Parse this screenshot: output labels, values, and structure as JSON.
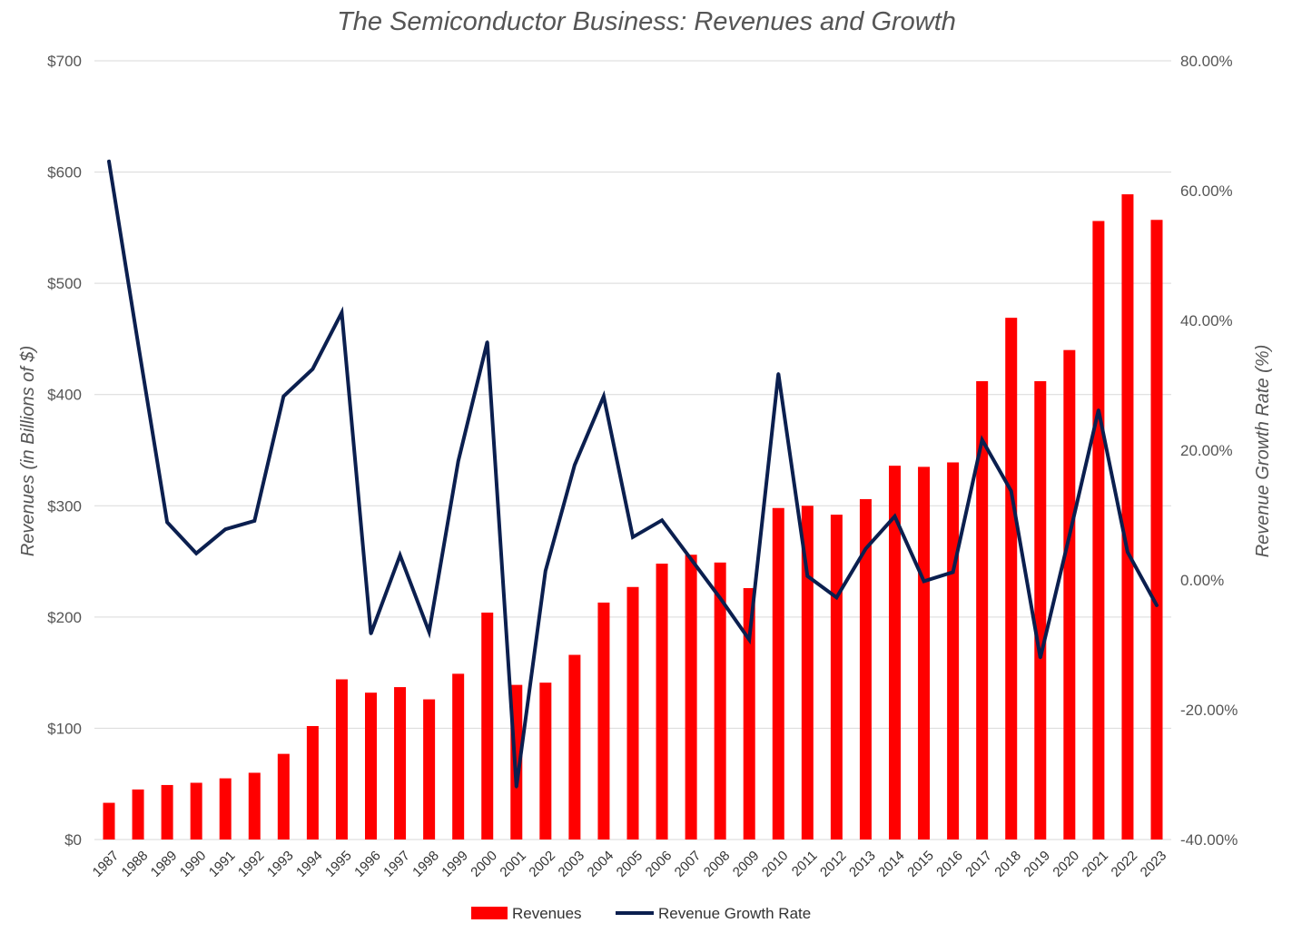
{
  "chart_data": {
    "type": "bar+line",
    "title": "The Semiconductor Business: Revenues and Growth",
    "ylabel": "Revenues (in Billions of $)",
    "y2label": "Revenue Growth Rate (%)",
    "ylim": [
      0,
      700
    ],
    "y2lim": [
      -40,
      80
    ],
    "yticks": [
      0,
      100,
      200,
      300,
      400,
      500,
      600,
      700
    ],
    "ytick_labels": [
      "$0",
      "$100",
      "$200",
      "$300",
      "$400",
      "$500",
      "$600",
      "$700"
    ],
    "y2ticks": [
      -40,
      -20,
      0,
      20,
      40,
      60,
      80
    ],
    "y2tick_labels": [
      "-40.00%",
      "-20.00%",
      "0.00%",
      "20.00%",
      "40.00%",
      "60.00%",
      "80.00%"
    ],
    "categories": [
      "1987",
      "1988",
      "1989",
      "1990",
      "1991",
      "1992",
      "1993",
      "1994",
      "1995",
      "1996",
      "1997",
      "1998",
      "1999",
      "2000",
      "2001",
      "2002",
      "2003",
      "2004",
      "2005",
      "2006",
      "2007",
      "2008",
      "2009",
      "2010",
      "2011",
      "2012",
      "2013",
      "2014",
      "2015",
      "2016",
      "2017",
      "2018",
      "2019",
      "2020",
      "2021",
      "2022",
      "2023"
    ],
    "series": [
      {
        "name": "Revenues",
        "kind": "bar",
        "axis": "left",
        "color": "#ff0000",
        "values": [
          33,
          45,
          49,
          51,
          55,
          60,
          77,
          102,
          144,
          132,
          137,
          126,
          149,
          204,
          139,
          141,
          166,
          213,
          227,
          248,
          256,
          249,
          226,
          298,
          300,
          292,
          306,
          336,
          335,
          339,
          412,
          469,
          412,
          440,
          556,
          580,
          557
        ]
      },
      {
        "name": "Revenue Growth Rate",
        "kind": "line",
        "axis": "right",
        "color": "#0b1f4f",
        "values": [
          64.5,
          36.4,
          8.9,
          4.1,
          7.8,
          9.1,
          28.3,
          32.5,
          41.2,
          -8.3,
          3.8,
          -8.0,
          18.3,
          36.7,
          -31.9,
          1.4,
          17.7,
          28.3,
          6.6,
          9.2,
          3.2,
          -2.8,
          -9.2,
          31.8,
          0.6,
          -2.7,
          4.8,
          9.8,
          -0.2,
          1.2,
          21.6,
          13.7,
          -12.0,
          6.8,
          26.2,
          4.3,
          -3.9
        ]
      }
    ],
    "grid": true,
    "legend_position": "bottom"
  }
}
